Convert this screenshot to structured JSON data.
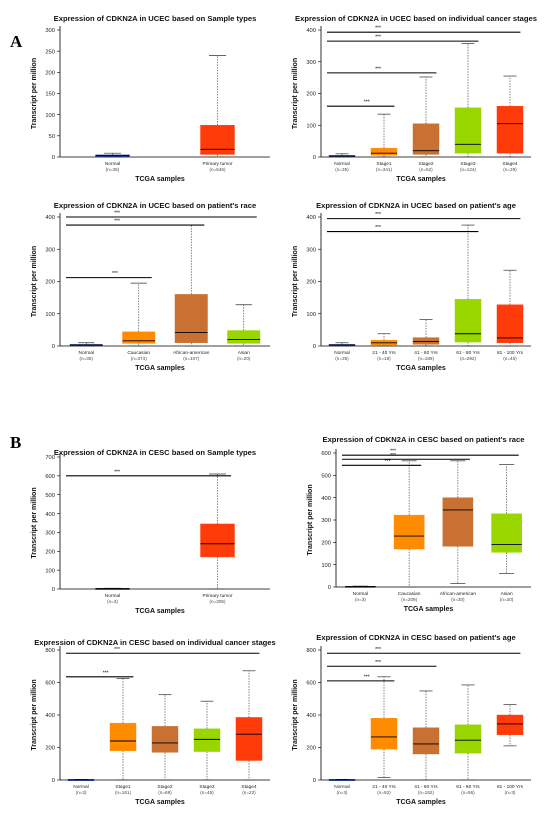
{
  "panels": [
    {
      "id": "A",
      "label": "A"
    },
    {
      "id": "B",
      "label": "B"
    }
  ],
  "chart_data": [
    {
      "type": "boxplot",
      "title": "Expression of CDKN2A in UCEC based on Sample types",
      "xlabel": "TCGA samples",
      "ylabel": "Transcript per million",
      "ylim": [
        0,
        300
      ],
      "yticks": [
        0,
        50,
        100,
        150,
        200,
        250,
        300
      ],
      "categories": [
        "Normal",
        "Primary tumor"
      ],
      "counts": [
        "(n=35)",
        "(n=546)"
      ],
      "colors": [
        "#1f3e99",
        "#ff3b0a"
      ],
      "boxes": [
        {
          "min": 0,
          "q1": 1,
          "median": 3,
          "q3": 5,
          "max": 9
        },
        {
          "min": 0,
          "q1": 6,
          "median": 18,
          "q3": 75,
          "max": 240
        }
      ],
      "significance": []
    },
    {
      "type": "boxplot",
      "title": "Expression of CDKN2A in UCEC based on individual cancer stages",
      "xlabel": "TCGA samples",
      "ylabel": "Transcript per million",
      "ylim": [
        0,
        400
      ],
      "yticks": [
        0,
        100,
        200,
        300,
        400
      ],
      "categories": [
        "Normal",
        "Stage1",
        "Stage2",
        "Stage3",
        "Stage4"
      ],
      "counts": [
        "(n=35)",
        "(n=341)",
        "(n=52)",
        "(n=124)",
        "(n=29)"
      ],
      "colors": [
        "#1f3e99",
        "#ff8c00",
        "#c87133",
        "#99d600",
        "#ff3b0a"
      ],
      "boxes": [
        {
          "min": 0,
          "q1": 1,
          "median": 3,
          "q3": 5,
          "max": 10
        },
        {
          "min": 0,
          "q1": 5,
          "median": 12,
          "q3": 28,
          "max": 135
        },
        {
          "min": 0,
          "q1": 8,
          "median": 20,
          "q3": 105,
          "max": 252
        },
        {
          "min": 0,
          "q1": 12,
          "median": 40,
          "q3": 155,
          "max": 357
        },
        {
          "min": 0,
          "q1": 12,
          "median": 105,
          "q3": 160,
          "max": 255
        }
      ],
      "significance": [
        {
          "from": 0,
          "to": 1,
          "y": 160,
          "label": "***"
        },
        {
          "from": 0,
          "to": 2,
          "y": 265,
          "label": "***"
        },
        {
          "from": 0,
          "to": 3,
          "y": 365,
          "label": "***"
        },
        {
          "from": 0,
          "to": 4,
          "y": 393,
          "label": "***"
        }
      ]
    },
    {
      "type": "boxplot",
      "title": "Expression of CDKN2A in UCEC based on patient's race",
      "xlabel": "TCGA samples",
      "ylabel": "Transcript per million",
      "ylim": [
        0,
        400
      ],
      "yticks": [
        0,
        100,
        200,
        300,
        400
      ],
      "categories": [
        "Normal",
        "Caucasian",
        "African-american",
        "Asian"
      ],
      "counts": [
        "(n=35)",
        "(n=374)",
        "(n=107)",
        "(n=20)"
      ],
      "colors": [
        "#1f3e99",
        "#ff8c00",
        "#c87133",
        "#99d600"
      ],
      "boxes": [
        {
          "min": 0,
          "q1": 1,
          "median": 3,
          "q3": 5,
          "max": 10
        },
        {
          "min": 0,
          "q1": 8,
          "median": 16,
          "q3": 44,
          "max": 195
        },
        {
          "min": 0,
          "q1": 10,
          "median": 42,
          "q3": 160,
          "max": 375
        },
        {
          "min": 0,
          "q1": 8,
          "median": 20,
          "q3": 48,
          "max": 128
        }
      ],
      "significance": [
        {
          "from": 0,
          "to": 1,
          "y": 212,
          "label": "***"
        },
        {
          "from": 0,
          "to": 2,
          "y": 375,
          "label": "***"
        },
        {
          "from": 0,
          "to": 3,
          "y": 400,
          "label": "***"
        }
      ]
    },
    {
      "type": "boxplot",
      "title": "Expression of CDKN2A in UCEC based on patient's age",
      "xlabel": "TCGA samples",
      "ylabel": "Transcript per million",
      "ylim": [
        0,
        400
      ],
      "yticks": [
        0,
        100,
        200,
        300,
        400
      ],
      "categories": [
        "Normal",
        "21 - 40 Yrs",
        "41 - 60 Yrs",
        "61 - 80 Yrs",
        "81 - 100 Yrs"
      ],
      "counts": [
        "(n=35)",
        "(n=18)",
        "(n=189)",
        "(n=292)",
        "(n=45)"
      ],
      "colors": [
        "#1f3e99",
        "#ff8c00",
        "#c87133",
        "#99d600",
        "#ff3b0a"
      ],
      "boxes": [
        {
          "min": 0,
          "q1": 1,
          "median": 3,
          "q3": 5,
          "max": 10
        },
        {
          "min": 0,
          "q1": 3,
          "median": 10,
          "q3": 18,
          "max": 38
        },
        {
          "min": 0,
          "q1": 5,
          "median": 14,
          "q3": 26,
          "max": 82
        },
        {
          "min": 0,
          "q1": 12,
          "median": 38,
          "q3": 145,
          "max": 375
        },
        {
          "min": 0,
          "q1": 10,
          "median": 25,
          "q3": 128,
          "max": 235
        }
      ],
      "significance": [
        {
          "from": 0,
          "to": 3,
          "y": 355,
          "label": "***"
        },
        {
          "from": 0,
          "to": 4,
          "y": 395,
          "label": "***"
        }
      ]
    },
    {
      "type": "boxplot",
      "title": "Expression of CDKN2A in CESC based on Sample types",
      "xlabel": "TCGA samples",
      "ylabel": "Transcript per million",
      "ylim": [
        0,
        700
      ],
      "yticks": [
        0,
        100,
        200,
        300,
        400,
        500,
        600,
        700
      ],
      "categories": [
        "Normal",
        "Primary tumor"
      ],
      "counts": [
        "(n=3)",
        "(n=305)"
      ],
      "colors": [
        "#1f3e99",
        "#ff3b0a"
      ],
      "boxes": [
        {
          "min": 0,
          "q1": 1,
          "median": 2,
          "q3": 3,
          "max": 4
        },
        {
          "min": 0,
          "q1": 170,
          "median": 240,
          "q3": 345,
          "max": 610
        }
      ],
      "significance": [
        {
          "from": 0,
          "to": 1,
          "y": 600,
          "label": "***"
        }
      ]
    },
    {
      "type": "boxplot",
      "title": "Expression of CDKN2A in CESC based on patient's race",
      "xlabel": "TCGA samples",
      "ylabel": "Transcript per million",
      "ylim": [
        0,
        600
      ],
      "yticks": [
        0,
        100,
        200,
        300,
        400,
        500,
        600
      ],
      "categories": [
        "Normal",
        "Caucasian",
        "African-american",
        "Asian"
      ],
      "counts": [
        "(n=3)",
        "(n=209)",
        "(n=30)",
        "(n=20)"
      ],
      "colors": [
        "#1f3e99",
        "#ff8c00",
        "#c87133",
        "#99d600"
      ],
      "boxes": [
        {
          "min": 0,
          "q1": 1,
          "median": 2,
          "q3": 3,
          "max": 4
        },
        {
          "min": 0,
          "q1": 170,
          "median": 228,
          "q3": 322,
          "max": 565
        },
        {
          "min": 15,
          "q1": 182,
          "median": 345,
          "q3": 400,
          "max": 565
        },
        {
          "min": 60,
          "q1": 155,
          "median": 190,
          "q3": 328,
          "max": 548
        }
      ],
      "significance": [
        {
          "from": 0,
          "to": 1,
          "y": 545,
          "label": "***"
        },
        {
          "from": 0,
          "to": 2,
          "y": 572,
          "label": "***"
        },
        {
          "from": 0,
          "to": 3,
          "y": 590,
          "label": "***"
        }
      ]
    },
    {
      "type": "boxplot",
      "title": "Expression of CDKN2A in CESC based on individual cancer stages",
      "xlabel": "TCGA samples",
      "ylabel": "Transcript per million",
      "ylim": [
        0,
        800
      ],
      "yticks": [
        0,
        200,
        400,
        600,
        800
      ],
      "categories": [
        "Normal",
        "Stage1",
        "Stage2",
        "Stage3",
        "Stage4"
      ],
      "counts": [
        "(n=3)",
        "(n=161)",
        "(n=69)",
        "(n=46)",
        "(n=22)"
      ],
      "colors": [
        "#1f3e99",
        "#ff8c00",
        "#c87133",
        "#99d600",
        "#ff3b0a"
      ],
      "boxes": [
        {
          "min": 0,
          "q1": 1,
          "median": 2,
          "q3": 3,
          "max": 4
        },
        {
          "min": 0,
          "q1": 180,
          "median": 240,
          "q3": 350,
          "max": 625
        },
        {
          "min": 0,
          "q1": 170,
          "median": 228,
          "q3": 330,
          "max": 525
        },
        {
          "min": 0,
          "q1": 175,
          "median": 250,
          "q3": 315,
          "max": 485
        },
        {
          "min": 0,
          "q1": 120,
          "median": 282,
          "q3": 385,
          "max": 672
        }
      ],
      "significance": [
        {
          "from": 0,
          "to": 1,
          "y": 635,
          "label": "***"
        },
        {
          "from": 0,
          "to": 4,
          "y": 780,
          "label": "***"
        }
      ]
    },
    {
      "type": "boxplot",
      "title": "Expression of CDKN2A in CESC based on patient's age",
      "xlabel": "TCGA samples",
      "ylabel": "Transcript per million",
      "ylim": [
        0,
        800
      ],
      "yticks": [
        0,
        200,
        400,
        600,
        800
      ],
      "categories": [
        "Normal",
        "21 - 40 Yrs",
        "41 - 60 Yrs",
        "61 - 80 Yrs",
        "81 - 100 Yrs"
      ],
      "counts": [
        "(n=3)",
        "(n=92)",
        "(n=152)",
        "(n=56)",
        "(n=3)"
      ],
      "colors": [
        "#1f3e99",
        "#ff8c00",
        "#c87133",
        "#99d600",
        "#ff3b0a"
      ],
      "boxes": [
        {
          "min": 0,
          "q1": 1,
          "median": 2,
          "q3": 3,
          "max": 4
        },
        {
          "min": 15,
          "q1": 190,
          "median": 265,
          "q3": 380,
          "max": 635
        },
        {
          "min": 0,
          "q1": 160,
          "median": 222,
          "q3": 322,
          "max": 548
        },
        {
          "min": 0,
          "q1": 165,
          "median": 245,
          "q3": 340,
          "max": 585
        },
        {
          "min": 210,
          "q1": 278,
          "median": 345,
          "q3": 400,
          "max": 465
        }
      ],
      "significance": [
        {
          "from": 0,
          "to": 1,
          "y": 610,
          "label": "***"
        },
        {
          "from": 0,
          "to": 2,
          "y": 700,
          "label": "***"
        },
        {
          "from": 0,
          "to": 4,
          "y": 780,
          "label": "***"
        }
      ]
    }
  ]
}
